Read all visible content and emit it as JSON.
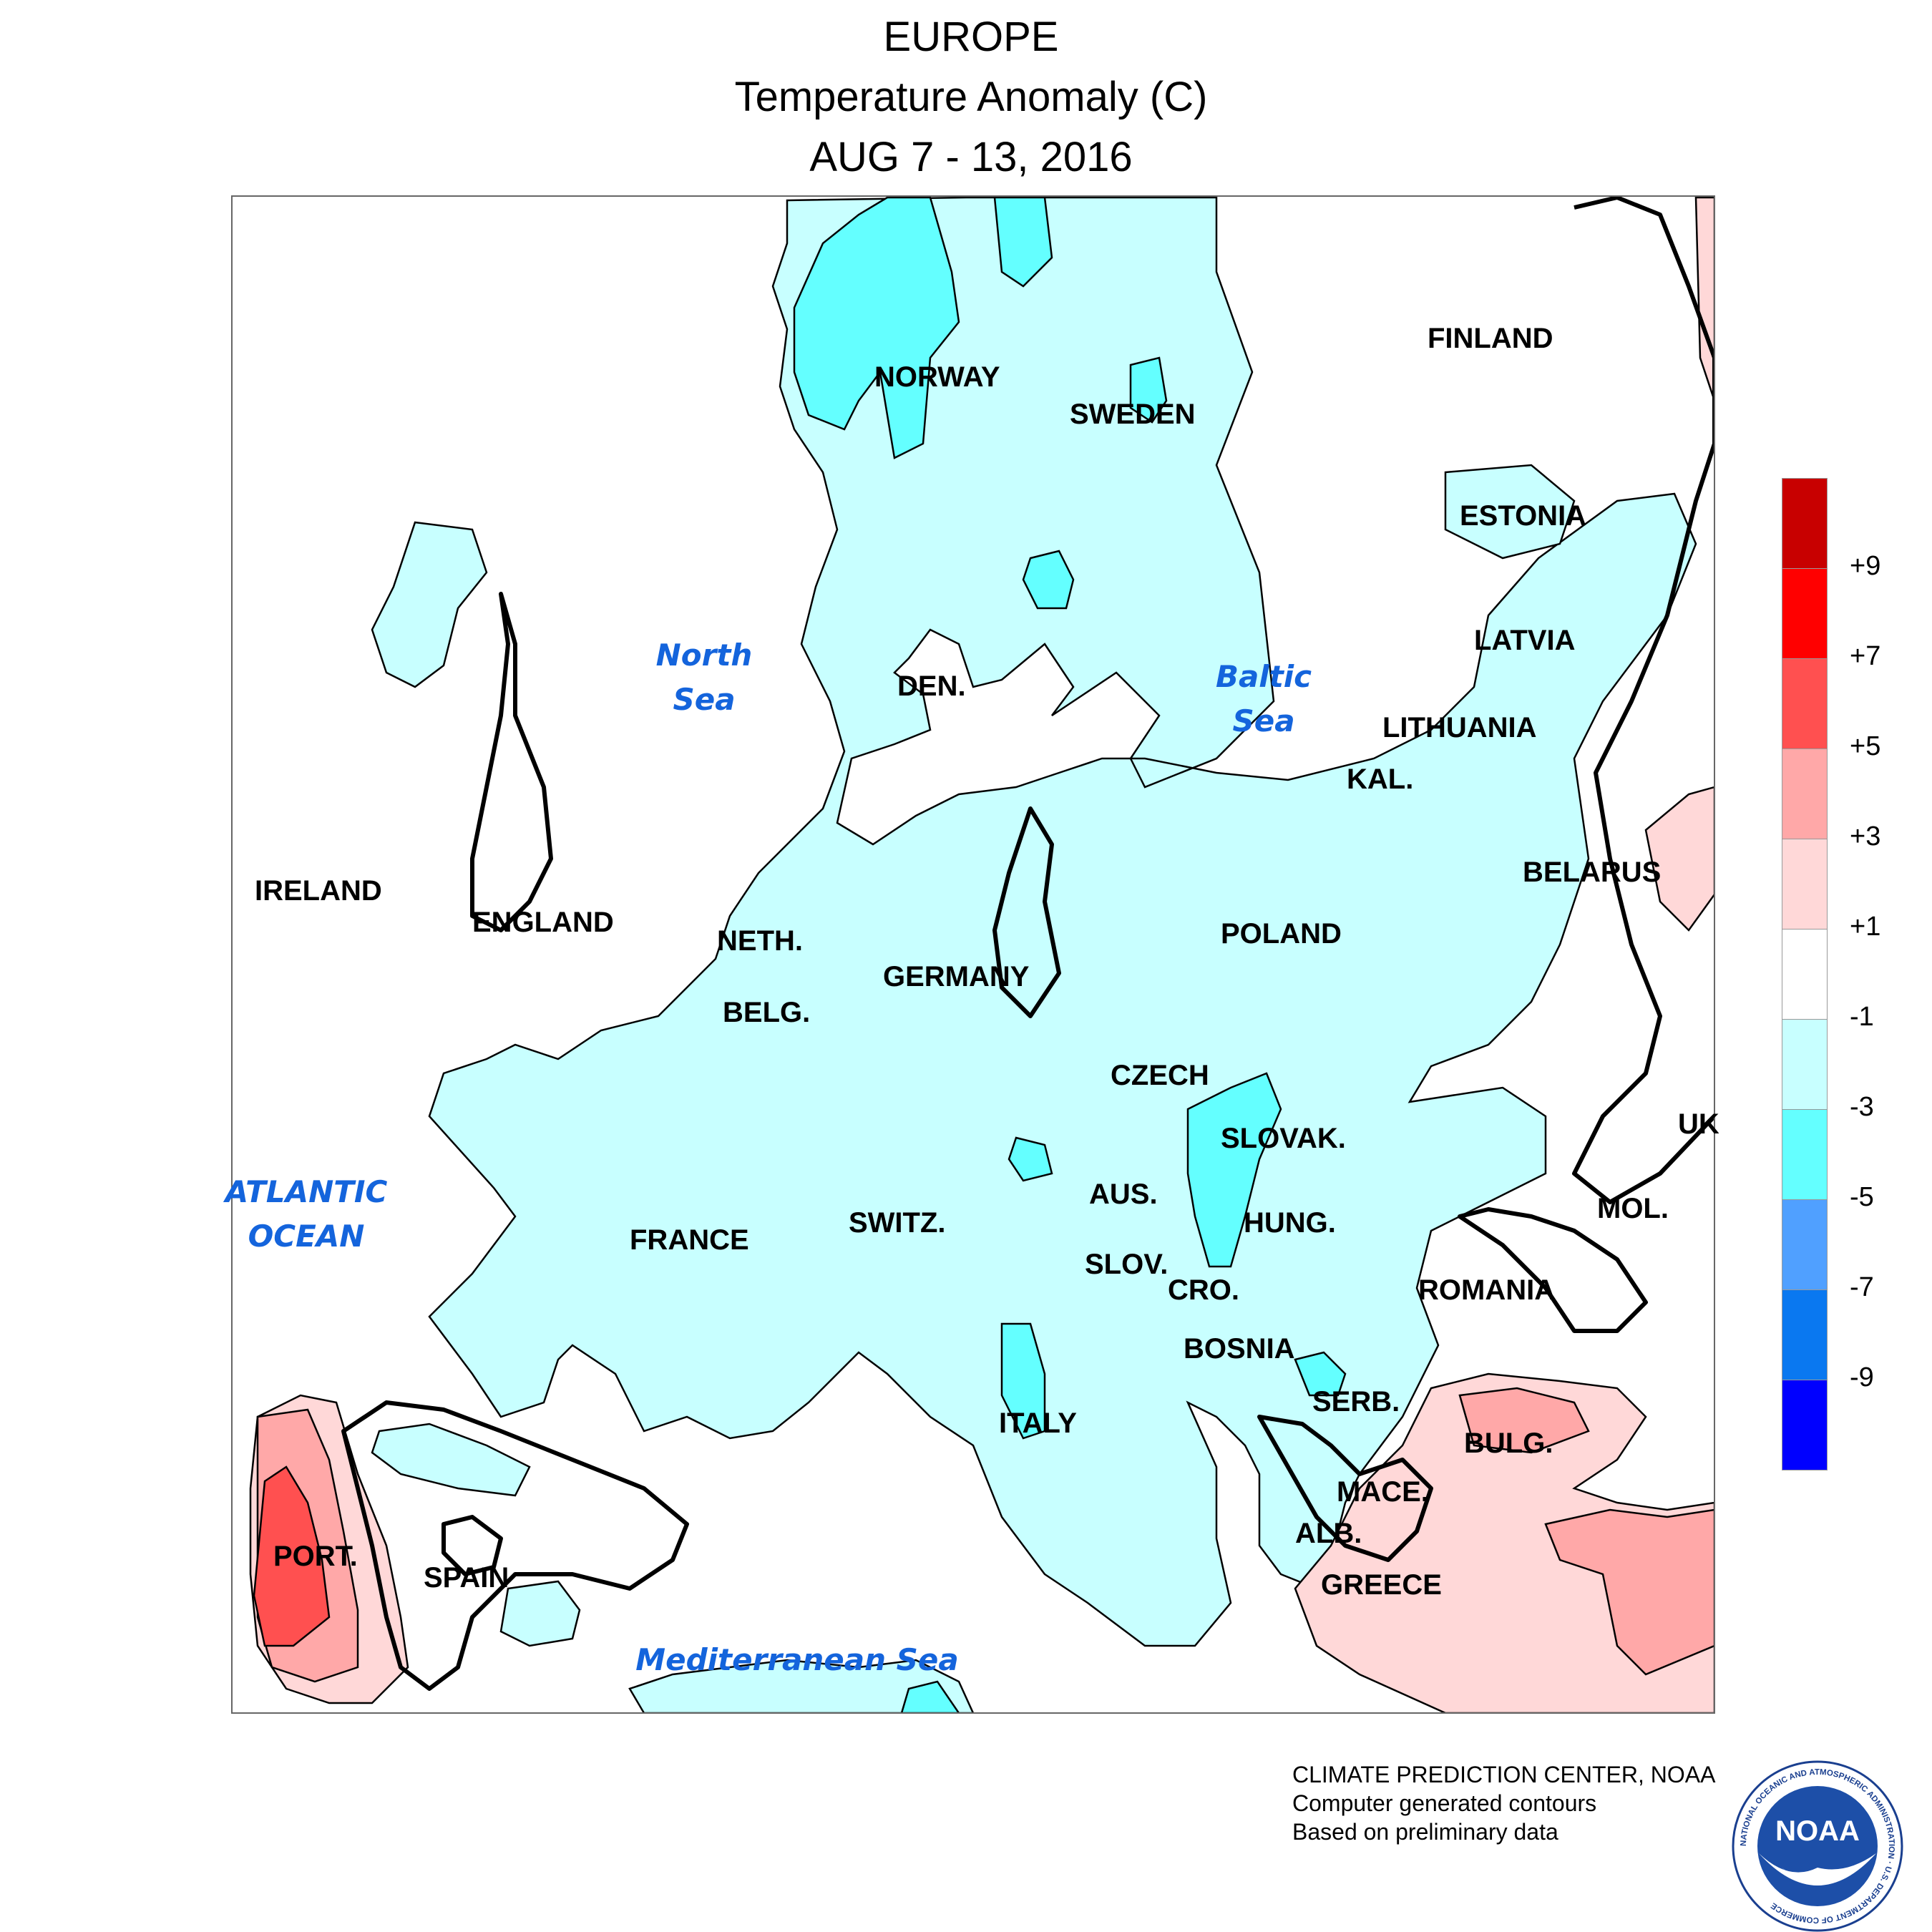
{
  "title": {
    "line1": "EUROPE",
    "line2": "Temperature Anomaly (C)",
    "line3": "AUG 7 - 13, 2016"
  },
  "labels": {
    "norway": "NORWAY",
    "sweden": "SWEDEN",
    "finland": "FINLAND",
    "estonia": "ESTONIA",
    "latvia": "LATVIA",
    "lithuania": "LITHUANIA",
    "kal": "KAL.",
    "belarus": "BELARUS",
    "poland": "POLAND",
    "den": "DEN.",
    "ireland": "IRELAND",
    "england": "ENGLAND",
    "neth": "NETH.",
    "belg": "BELG.",
    "germany": "GERMANY",
    "czech": "CZECH",
    "slovak": "SLOVAK.",
    "uk": "UK",
    "france": "FRANCE",
    "switz": "SWITZ.",
    "aus": "AUS.",
    "hung": "HUNG.",
    "mol": "MOL.",
    "romania": "ROMANIA",
    "slov": "SLOV.",
    "cro": "CRO.",
    "bosnia": "BOSNIA",
    "serb": "SERB.",
    "bulg": "BULG.",
    "italy": "ITALY",
    "mace": "MACE.",
    "alb": "ALB.",
    "greece": "GREECE",
    "port": "PORT.",
    "spain": "SPAIN"
  },
  "water": {
    "north_sea_1": "North",
    "north_sea_2": "Sea",
    "baltic_1": "Baltic",
    "baltic_2": "Sea",
    "atlantic_1": "ATLANTIC",
    "atlantic_2": "OCEAN",
    "med": "Mediterranean Sea"
  },
  "legend": {
    "colors": [
      "#c80000",
      "#ff0000",
      "#ff5050",
      "#ffa8a8",
      "#ffd8d8",
      "#ffffff",
      "#c8ffff",
      "#64ffff",
      "#50a0ff",
      "#0a78f0",
      "#0000ff"
    ],
    "ticks": [
      "+9",
      "+7",
      "+5",
      "+3",
      "+1",
      "-1",
      "-3",
      "-5",
      "-7",
      "-9"
    ]
  },
  "credits": {
    "line1": "CLIMATE PREDICTION CENTER, NOAA",
    "line2": "Computer generated contours",
    "line3": "Based on preliminary data"
  },
  "logo": {
    "text": "NOAA",
    "ring": "NATIONAL OCEANIC AND ATMOSPHERIC ADMINISTRATION · U.S. DEPARTMENT OF COMMERCE"
  }
}
